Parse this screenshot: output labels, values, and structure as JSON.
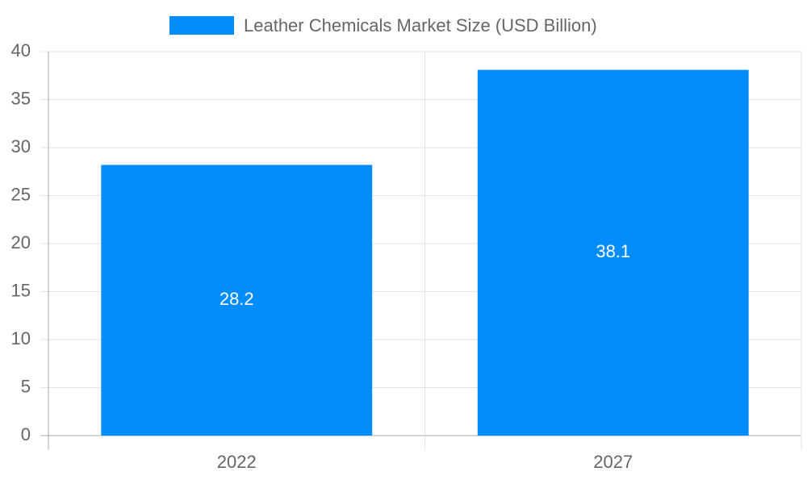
{
  "chart_data": {
    "type": "bar",
    "categories": [
      "2022",
      "2027"
    ],
    "series": [
      {
        "name": "Leather Chemicals Market Size (USD Billion)",
        "color": "#038cfc",
        "values": [
          28.2,
          38.1
        ]
      }
    ],
    "ylim": [
      0,
      40
    ],
    "yticks": [
      0,
      5,
      10,
      15,
      20,
      25,
      30,
      35,
      40
    ],
    "grid": true,
    "legend": "top"
  }
}
